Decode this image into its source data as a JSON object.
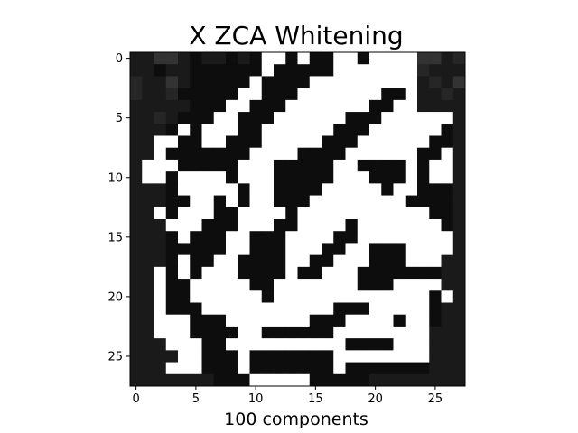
{
  "chart_data": {
    "type": "heatmap",
    "title": "X ZCA Whitening",
    "xlabel": "100 components",
    "ylabel": "",
    "colormap": "gray",
    "rows": 28,
    "cols": 28,
    "x_ticks": [
      0,
      5,
      10,
      15,
      20,
      25
    ],
    "y_ticks": [
      0,
      5,
      10,
      15,
      20,
      25
    ],
    "xlim": [
      -0.5,
      27.5
    ],
    "ylim": [
      27.5,
      -0.5
    ],
    "grid": false,
    "legend": "none",
    "values": [
      [
        0.1,
        0.1,
        0.2,
        0.2,
        0.1,
        0.05,
        0.1,
        0.1,
        0.05,
        0.1,
        0.05,
        1,
        1,
        0.05,
        1,
        0.05,
        0.05,
        1,
        1,
        0.05,
        1,
        1,
        1,
        1,
        0.2,
        0.2,
        0.1,
        0.15
      ],
      [
        0.1,
        0.1,
        0.05,
        0.1,
        0.1,
        0.05,
        0.05,
        0.05,
        0.05,
        0.05,
        0.05,
        1,
        0.05,
        0.05,
        0.05,
        0.05,
        0.05,
        1,
        1,
        1,
        1,
        1,
        1,
        1,
        0.15,
        0.1,
        0.1,
        0.1
      ],
      [
        0.15,
        0.1,
        0.1,
        0.2,
        0.1,
        0.05,
        0.05,
        0.05,
        0.05,
        0.05,
        1,
        0.05,
        0.05,
        0.05,
        0.05,
        1,
        1,
        1,
        1,
        1,
        1,
        1,
        1,
        1,
        0.1,
        0.15,
        0.1,
        0.2
      ],
      [
        0.15,
        0.1,
        0.1,
        0.15,
        0.05,
        0.05,
        0.05,
        0.05,
        0.05,
        1,
        1,
        0.05,
        0.05,
        0.05,
        1,
        1,
        1,
        1,
        1,
        1,
        1,
        0.05,
        0.05,
        1,
        0.1,
        0.1,
        0.15,
        0.1
      ],
      [
        0.1,
        0.1,
        0.1,
        0.1,
        0.1,
        0.05,
        0.05,
        0.05,
        1,
        1,
        0.05,
        0.05,
        0.05,
        1,
        1,
        1,
        1,
        1,
        1,
        1,
        0.05,
        0.05,
        1,
        1,
        0.1,
        0.1,
        0.1,
        0.1
      ],
      [
        0.1,
        0.1,
        0.15,
        0.1,
        0.05,
        0.05,
        0.05,
        1,
        1,
        0.05,
        0.05,
        0.05,
        1,
        1,
        1,
        1,
        1,
        1,
        0.05,
        0.05,
        0.05,
        1,
        1,
        1,
        1,
        1,
        1,
        0.1
      ],
      [
        0.1,
        0.1,
        0.1,
        0.05,
        1,
        0.05,
        1,
        1,
        1,
        0.05,
        0.05,
        1,
        1,
        1,
        1,
        1,
        1,
        0.05,
        0.05,
        0.05,
        1,
        1,
        1,
        1,
        1,
        1,
        0.05,
        0.1
      ],
      [
        0.1,
        0.1,
        1,
        1,
        0.05,
        0.05,
        1,
        1,
        0.05,
        0.05,
        0.05,
        1,
        1,
        1,
        1,
        1,
        0.05,
        0.05,
        0.05,
        1,
        1,
        1,
        1,
        1,
        1,
        0.05,
        0.05,
        0.1
      ],
      [
        0.1,
        0.1,
        1,
        0.05,
        0.05,
        0.05,
        0.05,
        0.05,
        0.05,
        0.05,
        1,
        1,
        1,
        1,
        0.05,
        0.05,
        0.05,
        0.05,
        1,
        1,
        1,
        1,
        1,
        1,
        0.05,
        0.05,
        1,
        0.1
      ],
      [
        0.1,
        1,
        1,
        1,
        0.05,
        0.05,
        0.05,
        0.05,
        0.05,
        1,
        1,
        1,
        0.05,
        0.05,
        0.05,
        0.05,
        0.05,
        1,
        1,
        0.05,
        0.05,
        0.05,
        0.05,
        1,
        0.05,
        1,
        1,
        0.1
      ],
      [
        0.1,
        1,
        1,
        0.05,
        1,
        1,
        1,
        1,
        0.05,
        1,
        1,
        1,
        0.05,
        0.05,
        0.05,
        0.05,
        0.05,
        1,
        1,
        1,
        0.05,
        0.05,
        0.05,
        1,
        0.05,
        1,
        1,
        0.1
      ],
      [
        0.1,
        0.1,
        0.1,
        0.05,
        1,
        1,
        1,
        1,
        1,
        0.05,
        1,
        1,
        0.05,
        0.05,
        0.05,
        0.05,
        1,
        1,
        1,
        1,
        1,
        0.05,
        1,
        1,
        0.05,
        0.05,
        0.05,
        0.1
      ],
      [
        0.1,
        0.1,
        0.1,
        0.05,
        0.05,
        1,
        1,
        0.05,
        1,
        0.05,
        1,
        1,
        0.05,
        0.05,
        0.05,
        1,
        1,
        1,
        1,
        1,
        1,
        1,
        1,
        0.05,
        0.05,
        0.05,
        0.05,
        0.1
      ],
      [
        0.1,
        0.1,
        1,
        0.05,
        1,
        1,
        1,
        0.05,
        0.05,
        1,
        1,
        1,
        1,
        0.05,
        1,
        1,
        1,
        1,
        1,
        1,
        1,
        1,
        1,
        1,
        1,
        0.05,
        0.05,
        0.1
      ],
      [
        0.1,
        0.1,
        0.1,
        1,
        1,
        1,
        0.05,
        0.05,
        0.05,
        1,
        1,
        1,
        0.05,
        0.05,
        1,
        1,
        1,
        1,
        0.05,
        1,
        1,
        1,
        1,
        1,
        1,
        1,
        0.05,
        0.1
      ],
      [
        0.1,
        0.1,
        0.1,
        0.05,
        1,
        0.05,
        0.05,
        0.05,
        1,
        1,
        0.05,
        0.05,
        0.05,
        1,
        1,
        1,
        1,
        0.05,
        0.05,
        1,
        1,
        1,
        1,
        1,
        1,
        1,
        1,
        0.1
      ],
      [
        0.1,
        0.1,
        0.1,
        0.05,
        0.05,
        0.05,
        0.05,
        0.05,
        1,
        1,
        0.05,
        0.05,
        0.05,
        1,
        1,
        1,
        0.05,
        0.05,
        1,
        1,
        0.05,
        0.05,
        0.05,
        1,
        1,
        1,
        1,
        0.1
      ],
      [
        0.1,
        0.1,
        0.1,
        0.05,
        1,
        0.05,
        0.05,
        1,
        1,
        0.05,
        0.05,
        0.05,
        0.05,
        1,
        1,
        0.05,
        0.05,
        1,
        1,
        1,
        0.05,
        0.05,
        0.05,
        1,
        1,
        1,
        0.1,
        0.1
      ],
      [
        0.1,
        0.1,
        1,
        0.05,
        1,
        0.05,
        1,
        1,
        1,
        0.05,
        0.05,
        0.05,
        0.05,
        1,
        0.05,
        0.05,
        1,
        1,
        1,
        0.05,
        0.05,
        0.05,
        0.05,
        0.05,
        0.05,
        0.05,
        0.1,
        0.1
      ],
      [
        0.1,
        0.1,
        1,
        0.05,
        0.05,
        1,
        1,
        1,
        1,
        1,
        0.05,
        0.05,
        1,
        1,
        1,
        1,
        1,
        1,
        1,
        0.05,
        0.05,
        0.05,
        1,
        1,
        1,
        1,
        0.1,
        0.1
      ],
      [
        0.1,
        0.1,
        1,
        0.05,
        0.05,
        1,
        1,
        1,
        1,
        1,
        1,
        0.05,
        1,
        1,
        1,
        1,
        1,
        1,
        1,
        1,
        1,
        1,
        1,
        1,
        1,
        0.05,
        1,
        0.1
      ],
      [
        0.1,
        0.1,
        1,
        0.05,
        0.05,
        0.05,
        1,
        1,
        1,
        1,
        1,
        1,
        1,
        1,
        1,
        1,
        1,
        0.05,
        0.05,
        0.05,
        1,
        1,
        1,
        1,
        1,
        0.05,
        0.1,
        0.1
      ],
      [
        0.1,
        0.1,
        1,
        1,
        1,
        0.05,
        0.05,
        0.05,
        1,
        1,
        1,
        1,
        1,
        1,
        1,
        0.05,
        0.05,
        0.05,
        1,
        1,
        1,
        1,
        0.05,
        1,
        1,
        0.05,
        0.1,
        0.1
      ],
      [
        0.1,
        0.1,
        1,
        1,
        1,
        0.05,
        0.05,
        0.05,
        0.05,
        1,
        1,
        0.05,
        0.05,
        0.05,
        0.05,
        0.05,
        0.05,
        1,
        1,
        1,
        1,
        1,
        1,
        1,
        1,
        0.1,
        0.1,
        0.1
      ],
      [
        0.1,
        0.1,
        0.1,
        1,
        1,
        1,
        0.05,
        0.05,
        1,
        1,
        1,
        1,
        1,
        1,
        1,
        1,
        1,
        1,
        0.05,
        0.05,
        0.05,
        0.05,
        1,
        1,
        1,
        0.1,
        0.1,
        0.1
      ],
      [
        0.1,
        0.1,
        0.1,
        0.1,
        1,
        1,
        0.05,
        0.05,
        0.05,
        1,
        0.05,
        0.05,
        0.05,
        0.05,
        0.05,
        0.05,
        0.05,
        1,
        1,
        1,
        1,
        1,
        1,
        1,
        1,
        0.1,
        0.1,
        0.1
      ],
      [
        0.1,
        0.1,
        0.1,
        1,
        1,
        1,
        0.05,
        0.05,
        0.05,
        1,
        0.05,
        0.05,
        0.05,
        0.05,
        0.05,
        0.05,
        0.05,
        1,
        0.05,
        0.05,
        0.05,
        0.05,
        0.05,
        0.05,
        0.05,
        0.1,
        0.1,
        0.1
      ],
      [
        0.1,
        0.1,
        0.1,
        0.1,
        0.1,
        0.1,
        0.1,
        0.05,
        0.05,
        0.05,
        1,
        1,
        1,
        1,
        1,
        0.05,
        0.05,
        0.05,
        0.05,
        0.05,
        0.1,
        0.1,
        0.1,
        0.1,
        0.1,
        0.1,
        0.1,
        0.1
      ]
    ]
  }
}
